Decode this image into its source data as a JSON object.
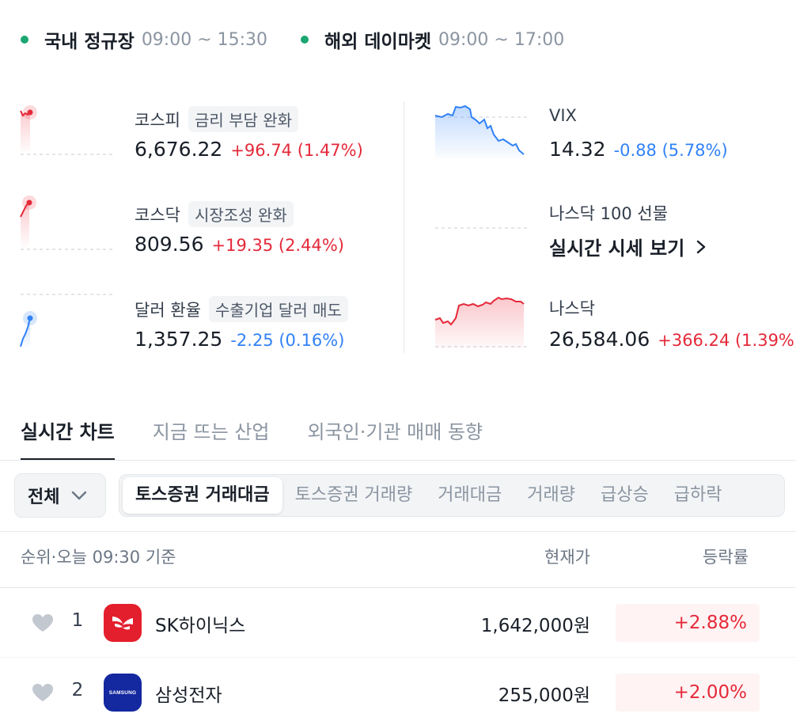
{
  "market_status": [
    {
      "name": "국내 정규장",
      "time": "09:00 ~ 15:30",
      "dot_color": "#1ba672"
    },
    {
      "name": "해외 데이마켓",
      "time": "09:00 ~ 17:00",
      "dot_color": "#1ba672"
    }
  ],
  "indices": {
    "kospi": {
      "name": "코스피",
      "badge": "금리 부담 완화",
      "value": "6,676.22",
      "change": "+96.74 (1.47%)"
    },
    "kosdaq": {
      "name": "코스닥",
      "badge": "시장조성 완화",
      "value": "809.56",
      "change": "+19.35 (2.44%)"
    },
    "usdkrw": {
      "name": "달러 환율",
      "badge": "수출기업 달러 매도",
      "value": "1,357.25",
      "change": "-2.25 (0.16%)"
    },
    "vix": {
      "name": "VIX",
      "value": "14.32",
      "change": "-0.88 (5.78%)"
    },
    "nasdaq100_futures": {
      "name": "나스닥 100 선물",
      "link": "실시간 시세 보기"
    },
    "nasdaq": {
      "name": "나스닥",
      "value": "26,584.06",
      "change": "+366.24 (1.39%)"
    }
  },
  "colors": {
    "up": "#e42939",
    "down": "#3182f6",
    "text": "#191f28",
    "muted": "#8b95a1"
  },
  "tabs": [
    {
      "label": "실시간 차트",
      "active": true
    },
    {
      "label": "지금 뜨는 산업",
      "active": false
    },
    {
      "label": "외국인·기관 매매 동향",
      "active": false
    }
  ],
  "filter": {
    "select": "전체",
    "segments": [
      {
        "label": "토스증권 거래대금",
        "active": true
      },
      {
        "label": "토스증권 거래량",
        "active": false
      },
      {
        "label": "거래대금",
        "active": false
      },
      {
        "label": "거래량",
        "active": false
      },
      {
        "label": "급상승",
        "active": false
      },
      {
        "label": "급하락",
        "active": false
      }
    ]
  },
  "list_header": {
    "rank": "순위·오늘 09:30 기준",
    "price": "현재가",
    "rate": "등락률"
  },
  "stocks": [
    {
      "rank": "1",
      "name": "SK하이닉스",
      "price": "1,642,000원",
      "rate": "+2.88%",
      "logo": "sk-hynix-logo"
    },
    {
      "rank": "2",
      "name": "삼성전자",
      "price": "255,000원",
      "rate": "+2.00%",
      "logo": "samsung-logo",
      "logo_text": "SAMSUNG"
    }
  ]
}
